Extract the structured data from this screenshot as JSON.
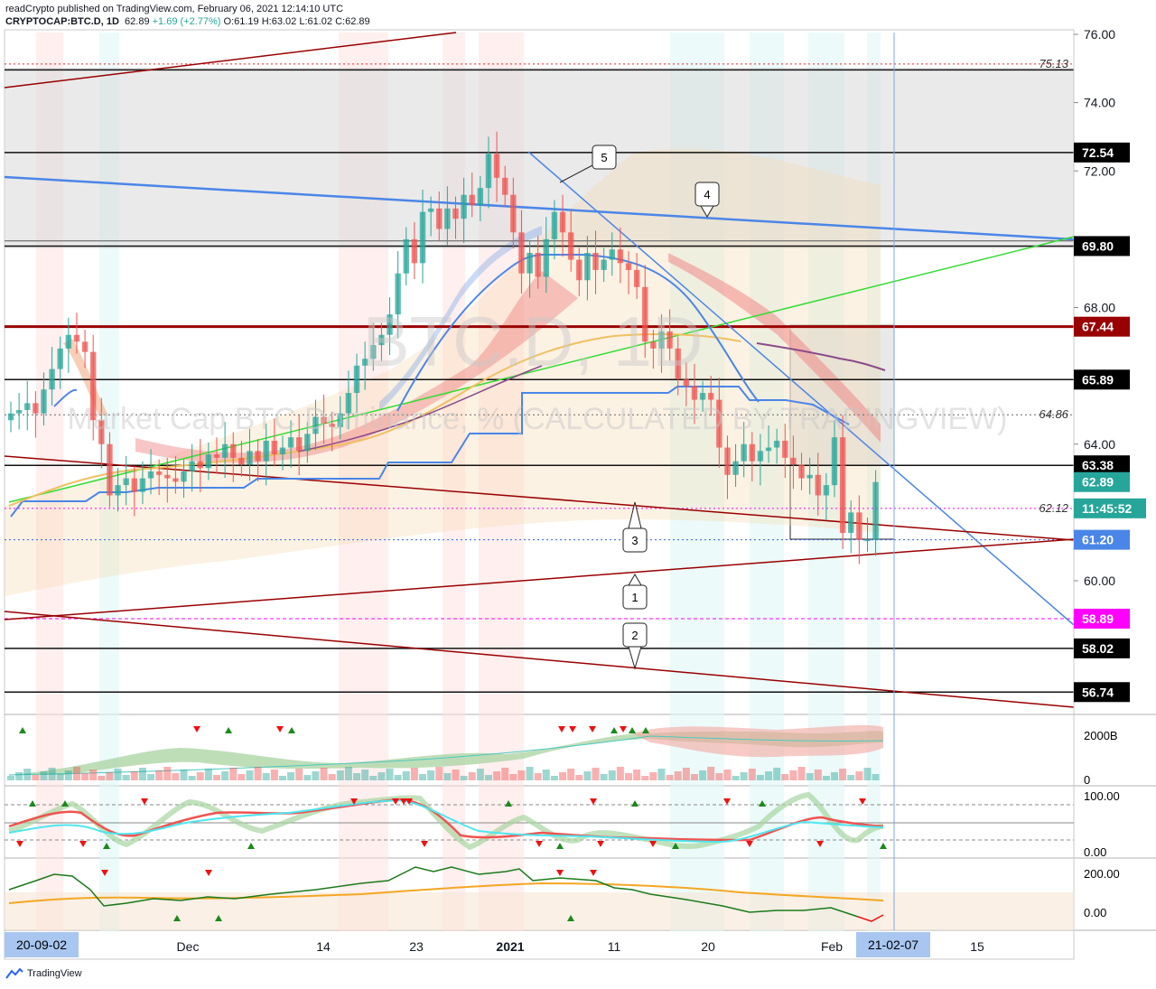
{
  "header": {
    "line1": "readCrypto published on TradingView.com, February 06, 2021 12:14:10 UTC",
    "symbol": "CRYPTOCAP:BTC.D, 1D",
    "last": "62.89",
    "change": "+1.69 (+2.77%)",
    "o": "O:61.19",
    "h": "H:63.02",
    "l": "L:61.02",
    "c": "C:62.89"
  },
  "watermark": {
    "symbol": "BTC.D, 1D",
    "description": "Market Cap BTC Dominance, % (CALCULATED BY TRADINGVIEW)"
  },
  "footer": {
    "brand": "TradingView"
  },
  "colors": {
    "up": "#26a69a",
    "down": "#ef5350",
    "blue_line": "#4a86e8",
    "dark_red": "#990000",
    "green_line": "#33dd33",
    "magenta": "#ff00ff",
    "orange": "#f5a623"
  },
  "chart_data": {
    "type": "candlestick",
    "y_axis": {
      "ticks": [
        "76.00",
        "74.00",
        "72.00",
        "68.00",
        "64.00",
        "60.00"
      ],
      "range": [
        56.2,
        76.0
      ]
    },
    "x_axis": {
      "ticks": [
        "Dec",
        "14",
        "23",
        "2021",
        "11",
        "20",
        "Feb",
        "15"
      ],
      "start_label": "20-09-02",
      "end_label": "21-02-07"
    },
    "price_labels": [
      {
        "value": 72.54,
        "text": "72.54",
        "style": "black"
      },
      {
        "value": 69.8,
        "text": "69.80",
        "style": "black"
      },
      {
        "value": 67.44,
        "text": "67.44",
        "style": "darkred"
      },
      {
        "value": 65.89,
        "text": "65.89",
        "style": "black"
      },
      {
        "value": 63.38,
        "text": "63.38",
        "style": "black"
      },
      {
        "value": 62.89,
        "text": "62.89",
        "style": "teal"
      },
      {
        "value": 62.12,
        "text": "11:45:52",
        "style": "teal"
      },
      {
        "value": 61.2,
        "text": "61.20",
        "style": "blue"
      },
      {
        "value": 58.89,
        "text": "58.89",
        "style": "magenta"
      },
      {
        "value": 58.02,
        "text": "58.02",
        "style": "black"
      },
      {
        "value": 56.74,
        "text": "56.74",
        "style": "black"
      }
    ],
    "level_texts": [
      {
        "value": 75.13,
        "text": "75.13"
      },
      {
        "value": 64.86,
        "text": "64.86"
      },
      {
        "value": 62.12,
        "text": "62.12"
      }
    ],
    "wave_labels": [
      "5",
      "4",
      "3",
      "1",
      "2"
    ],
    "candles_close": [
      64.9,
      65.0,
      65.2,
      64.9,
      65.6,
      66.2,
      66.8,
      67.2,
      67.0,
      66.7,
      64.7,
      64.0,
      62.5,
      62.8,
      63.0,
      62.6,
      63.0,
      63.2,
      63.1,
      63.0,
      62.9,
      63.2,
      63.5,
      63.3,
      63.7,
      63.6,
      64.0,
      63.6,
      63.4,
      63.8,
      63.5,
      64.1,
      63.7,
      63.9,
      64.2,
      63.8,
      64.3,
      64.8,
      64.6,
      64.5,
      64.9,
      65.5,
      66.3,
      66.5,
      66.9,
      67.2,
      67.8,
      69.0,
      70.0,
      69.3,
      70.8,
      70.9,
      70.3,
      70.9,
      70.6,
      71.3,
      71.0,
      71.5,
      72.5,
      71.8,
      71.3,
      70.2,
      69.0,
      69.6,
      68.9,
      70.0,
      70.8,
      70.2,
      69.4,
      68.8,
      69.6,
      69.1,
      69.4,
      69.7,
      69.3,
      69.1,
      68.6,
      67.0,
      66.8,
      67.3,
      66.8,
      65.9,
      65.7,
      65.3,
      65.5,
      65.3,
      63.9,
      63.1,
      63.5,
      64.0,
      63.5,
      63.8,
      63.9,
      64.1,
      63.6,
      63.4,
      63.0,
      63.1,
      62.5,
      62.8,
      64.2,
      61.4,
      62.0,
      61.2,
      61.2,
      62.89
    ],
    "volume_axis": [
      "2000B",
      "0"
    ],
    "stoch_axis": [
      "100.00",
      "0.00"
    ],
    "momentum_axis": [
      "200.00",
      "0.00"
    ]
  }
}
